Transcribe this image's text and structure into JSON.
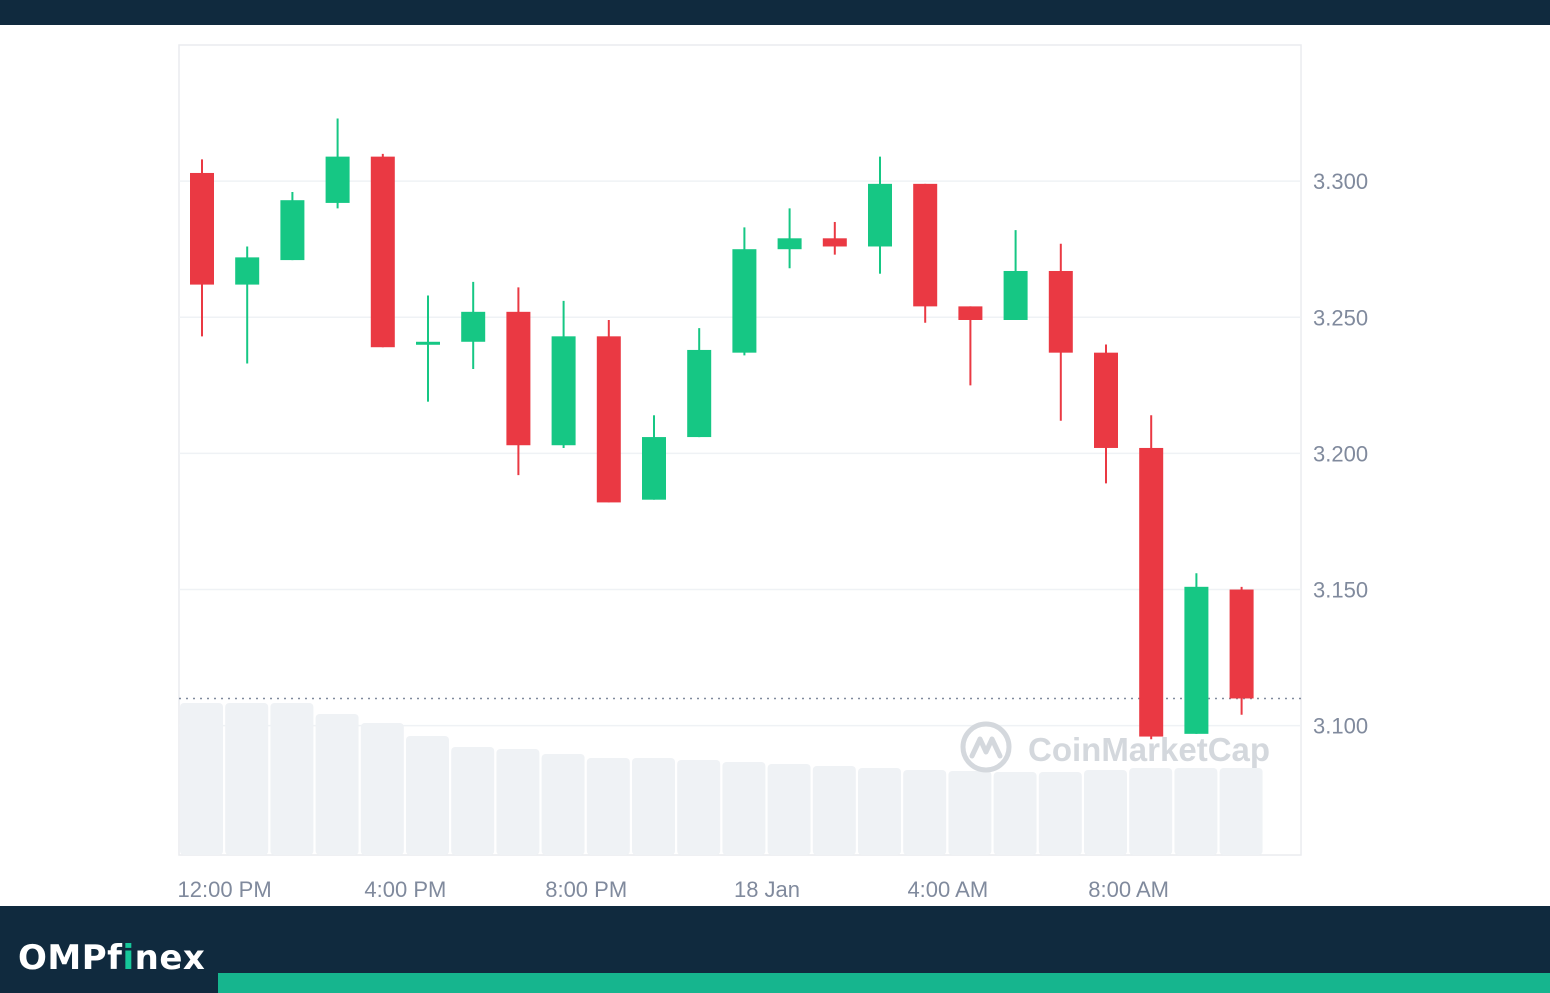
{
  "brand": {
    "part1": "OMPf",
    "part2": "i",
    "part3": "nex"
  },
  "watermark": "CoinMarketCap",
  "colors": {
    "up": "#16c784",
    "down": "#ea3943",
    "grid": "#eff2f5",
    "volume": "#eff2f5",
    "axis_text": "#808a9d",
    "dark": "#102a3e",
    "accent": "#16b58e"
  },
  "chart_data": {
    "type": "candlestick",
    "y_ticks": [
      "3.300",
      "3.250",
      "3.200",
      "3.150",
      "3.100"
    ],
    "y_tick_values": [
      3.3,
      3.25,
      3.2,
      3.15,
      3.1
    ],
    "ylim": [
      3.0525,
      3.35
    ],
    "x_ticks": [
      "12:00 PM",
      "4:00 PM",
      "8:00 PM",
      "18 Jan",
      "4:00 AM",
      "8:00 AM"
    ],
    "x_tick_index": [
      0.5,
      4.5,
      8.5,
      12.5,
      16.5,
      20.5
    ],
    "current_price": 3.11,
    "candles": [
      {
        "o": 3.303,
        "h": 3.308,
        "l": 3.243,
        "c": 3.262
      },
      {
        "o": 3.262,
        "h": 3.276,
        "l": 3.233,
        "c": 3.272
      },
      {
        "o": 3.271,
        "h": 3.296,
        "l": 3.271,
        "c": 3.293
      },
      {
        "o": 3.292,
        "h": 3.323,
        "l": 3.29,
        "c": 3.309
      },
      {
        "o": 3.309,
        "h": 3.31,
        "l": 3.239,
        "c": 3.239
      },
      {
        "o": 3.24,
        "h": 3.258,
        "l": 3.219,
        "c": 3.241
      },
      {
        "o": 3.241,
        "h": 3.263,
        "l": 3.231,
        "c": 3.252
      },
      {
        "o": 3.252,
        "h": 3.261,
        "l": 3.192,
        "c": 3.203
      },
      {
        "o": 3.203,
        "h": 3.256,
        "l": 3.202,
        "c": 3.243
      },
      {
        "o": 3.243,
        "h": 3.249,
        "l": 3.182,
        "c": 3.182
      },
      {
        "o": 3.183,
        "h": 3.214,
        "l": 3.183,
        "c": 3.206
      },
      {
        "o": 3.206,
        "h": 3.246,
        "l": 3.206,
        "c": 3.238
      },
      {
        "o": 3.237,
        "h": 3.283,
        "l": 3.236,
        "c": 3.275
      },
      {
        "o": 3.275,
        "h": 3.29,
        "l": 3.268,
        "c": 3.279
      },
      {
        "o": 3.279,
        "h": 3.285,
        "l": 3.273,
        "c": 3.276
      },
      {
        "o": 3.276,
        "h": 3.309,
        "l": 3.266,
        "c": 3.299
      },
      {
        "o": 3.299,
        "h": 3.299,
        "l": 3.248,
        "c": 3.254
      },
      {
        "o": 3.254,
        "h": 3.254,
        "l": 3.225,
        "c": 3.249
      },
      {
        "o": 3.249,
        "h": 3.282,
        "l": 3.249,
        "c": 3.267
      },
      {
        "o": 3.267,
        "h": 3.277,
        "l": 3.212,
        "c": 3.237
      },
      {
        "o": 3.237,
        "h": 3.24,
        "l": 3.189,
        "c": 3.202
      },
      {
        "o": 3.202,
        "h": 3.214,
        "l": 3.095,
        "c": 3.096
      },
      {
        "o": 3.097,
        "h": 3.156,
        "l": 3.097,
        "c": 3.151
      },
      {
        "o": 3.15,
        "h": 3.151,
        "l": 3.104,
        "c": 3.11
      }
    ],
    "volume": [
      152,
      152,
      152,
      141,
      132,
      119,
      108,
      106,
      101,
      97,
      97,
      95,
      93,
      91,
      89,
      87,
      85,
      84,
      83,
      83,
      85,
      87,
      87,
      87
    ]
  }
}
